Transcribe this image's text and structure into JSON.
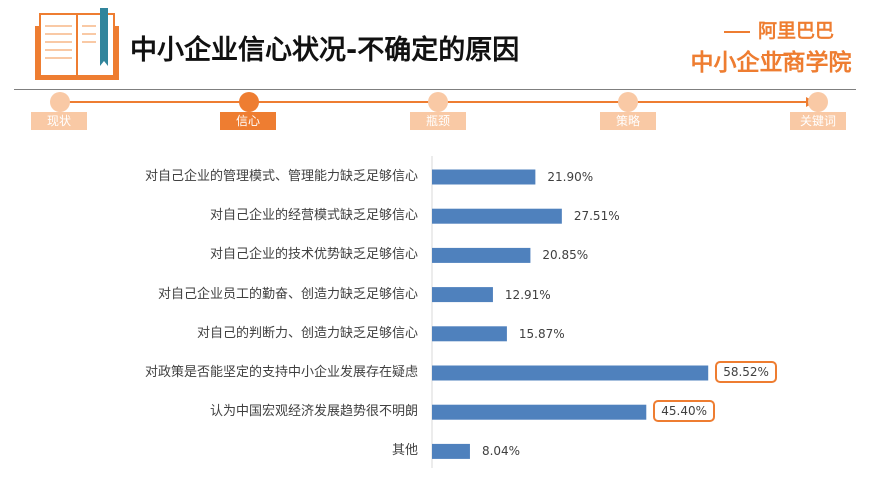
{
  "title": "中小企业信心状况-不确定的原因",
  "brand": {
    "top": "阿里巴巴",
    "main": "中小企业商学院"
  },
  "steps": [
    {
      "label": "现状",
      "active": false
    },
    {
      "label": "信心",
      "active": true
    },
    {
      "label": "瓶颈",
      "active": false
    },
    {
      "label": "策略",
      "active": false
    },
    {
      "label": "关键词",
      "active": false
    }
  ],
  "colors": {
    "accent": "#ee7d31",
    "accent_light": "#f9c9a5",
    "bar": "#4f81bd"
  },
  "icons": [
    "book-icon"
  ],
  "chart_data": {
    "type": "bar",
    "orientation": "horizontal",
    "title": "",
    "xlabel": "",
    "ylabel": "",
    "xlim": [
      0,
      70
    ],
    "categories": [
      "对自己企业的管理模式、管理能力缺乏足够信心",
      "对自己企业的经营模式缺乏足够信心",
      "对自己企业的技术优势缺乏足够信心",
      "对自己企业员工的勤奋、创造力缺乏足够信心",
      "对自己的判断力、创造力缺乏足够信心",
      "对政策是否能坚定的支持中小企业发展存在疑虑",
      "认为中国宏观经济发展趋势很不明朗",
      "其他"
    ],
    "values": [
      21.9,
      27.51,
      20.85,
      12.91,
      15.87,
      58.52,
      45.4,
      8.04
    ],
    "labels": [
      "21.90%",
      "27.51%",
      "20.85%",
      "12.91%",
      "15.87%",
      "58.52%",
      "45.40%",
      "8.04%"
    ],
    "highlighted": [
      false,
      false,
      false,
      false,
      false,
      true,
      true,
      false
    ],
    "grid": false,
    "legend": "none"
  }
}
